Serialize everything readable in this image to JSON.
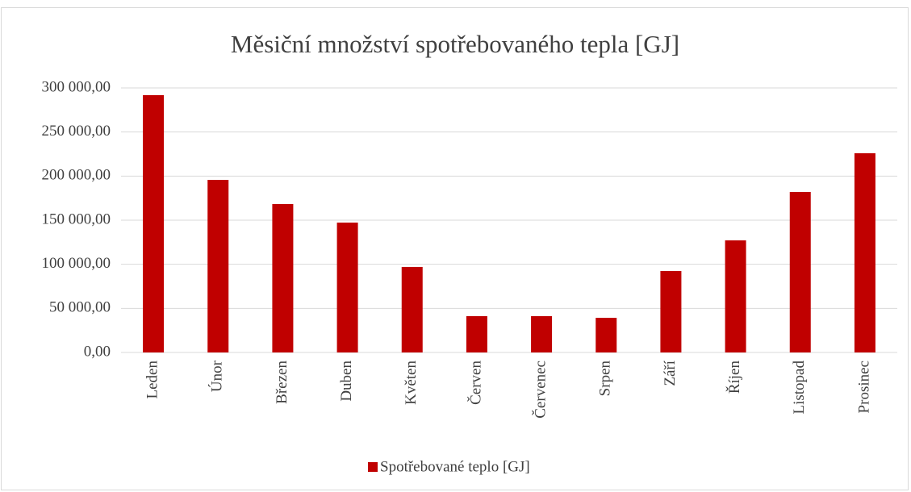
{
  "chart_data": {
    "type": "bar",
    "title": "Měsiční množství spotřebovaného tepla [GJ]",
    "categories": [
      "Leden",
      "Únor",
      "Březen",
      "Duben",
      "Květen",
      "Červen",
      "Červenec",
      "Srpen",
      "Září",
      "Říjen",
      "Listopad",
      "Prosinec"
    ],
    "series": [
      {
        "name": "Spotřebované teplo [GJ]",
        "color": "#c00000",
        "values": [
          291800,
          195700,
          168300,
          147300,
          97000,
          41200,
          41200,
          39300,
          92400,
          127100,
          182000,
          225900
        ]
      }
    ],
    "ylim": [
      0,
      300000
    ],
    "yticks": [
      {
        "value": 0,
        "label": "0,00"
      },
      {
        "value": 50000,
        "label": "50 000,00"
      },
      {
        "value": 100000,
        "label": "100 000,00"
      },
      {
        "value": 150000,
        "label": "150 000,00"
      },
      {
        "value": 200000,
        "label": "200 000,00"
      },
      {
        "value": 250000,
        "label": "250 000,00"
      },
      {
        "value": 300000,
        "label": "300 000,00"
      }
    ],
    "grid": true,
    "legend": "bottom"
  }
}
